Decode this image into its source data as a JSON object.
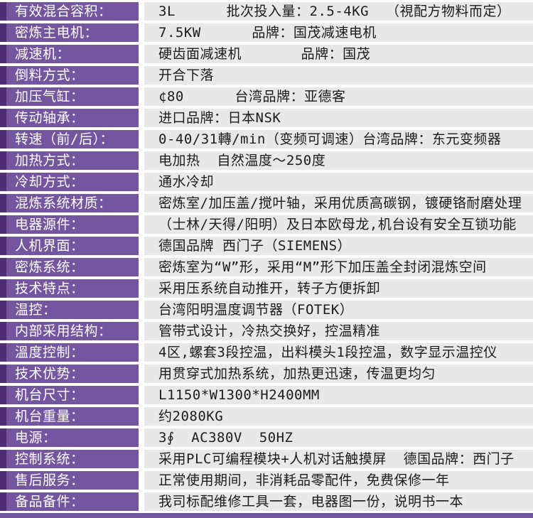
{
  "colors": {
    "purple": "#74559f",
    "purple_dark": "#502d72",
    "cell_bg": "#e8e8e8",
    "gap": "#ffffff",
    "text_dark": "#1b1b1b"
  },
  "table": {
    "rows": [
      {
        "label": "有效混合容积：",
        "value": "3L      批次投入量：2.5-4KG  （視配方物料而定）"
      },
      {
        "label": "密炼主电机：",
        "value": "7.5KW      品牌：国茂减速电机"
      },
      {
        "label": "减速机：",
        "value": "硬齿面减速机       品牌：国茂"
      },
      {
        "label": "倒料方式：",
        "value": "开合下落"
      },
      {
        "label": "加压气缸：",
        "value": "¢80      台湾品牌：亚德客"
      },
      {
        "label": "传动轴承：",
        "value": "进口品牌：日本NSK"
      },
      {
        "label": "转速（前/后）：",
        "value": "0-40/31轉/min（变频可调速）台湾品牌：东元变频器"
      },
      {
        "label": "加热方式：",
        "value": "电加热  自然温度～250度"
      },
      {
        "label": "冷却方式：",
        "value": "通水冷却"
      },
      {
        "label": "混炼系统材质：",
        "value": "密炼室/加压盖/搅叶轴，采用优质高碳钢，镀硬铬耐磨处理"
      },
      {
        "label": "电器源件：",
        "value": "（士林/天得/阳明）及日本欧母龙,机台设有安全互锁功能"
      },
      {
        "label": "人机界面：",
        "value": "德国品牌 西门子（SIEMENS）"
      },
      {
        "label": "密炼系统：",
        "value": "密炼室为“W”形，采用“M”形下加压盖全封闭混炼空间"
      },
      {
        "label": "技术特点：",
        "value": "采用压系统自动推开，转子方便拆卸"
      },
      {
        "label": "温控：",
        "value": "台湾阳明温度调节器（FOTEK）"
      },
      {
        "label": "内部采用结构：",
        "value": "管带式设计，冷热交换好，控温精准"
      },
      {
        "label": "溫度控制：",
        "value": "4区,螺套3段控温，出料模头1段控温，数字显示温控仪"
      },
      {
        "label": "技术优势：",
        "value": "用贯穿式加热系统，加热更迅速，传温更均匀"
      },
      {
        "label": "机台尺寸：",
        "value": "L1150*W1300*H2400MM"
      },
      {
        "label": "机台重量：",
        "value": "约2080KG"
      },
      {
        "label": "电源：",
        "value": "3∮  AC380V  50HZ"
      },
      {
        "label": "控制系统：",
        "value": "采用PLC可编程模块+人机对话触摸屏  德国品牌：西门子"
      },
      {
        "label": "售后服务：",
        "value": "正常使用期间，非消耗品零配件，免费保修一年"
      },
      {
        "label": "备品备件：",
        "value": "我司标配维修工具一套，电器图一份，说明书一本"
      }
    ]
  }
}
